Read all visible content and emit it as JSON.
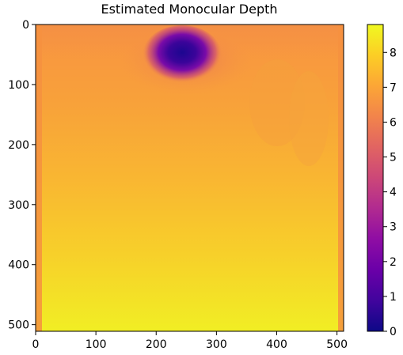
{
  "chart_data": {
    "type": "heatmap",
    "title": "Estimated Monocular Depth",
    "xlabel": "",
    "ylabel": "",
    "xlim": [
      0,
      511
    ],
    "ylim": [
      511,
      0
    ],
    "xticks": [
      0,
      100,
      200,
      300,
      400,
      500
    ],
    "yticks": [
      0,
      100,
      200,
      300,
      400,
      500
    ],
    "colormap": "plasma",
    "colorbar": {
      "min": 0,
      "max": 8.8,
      "ticks": [
        0,
        1,
        2,
        3,
        4,
        5,
        6,
        7,
        8
      ]
    },
    "grid": false,
    "value_regions": [
      {
        "region": "upper band (rows 0-40)",
        "approx_value": 7.2
      },
      {
        "region": "dark blob near row 50, col 250",
        "approx_value": 0.4
      },
      {
        "region": "middle (rows 200-300)",
        "approx_value": 7.8
      },
      {
        "region": "bottom (rows 450-511)",
        "approx_value": 8.6
      },
      {
        "region": "left/right edge strips",
        "approx_value": 6.8
      }
    ]
  }
}
